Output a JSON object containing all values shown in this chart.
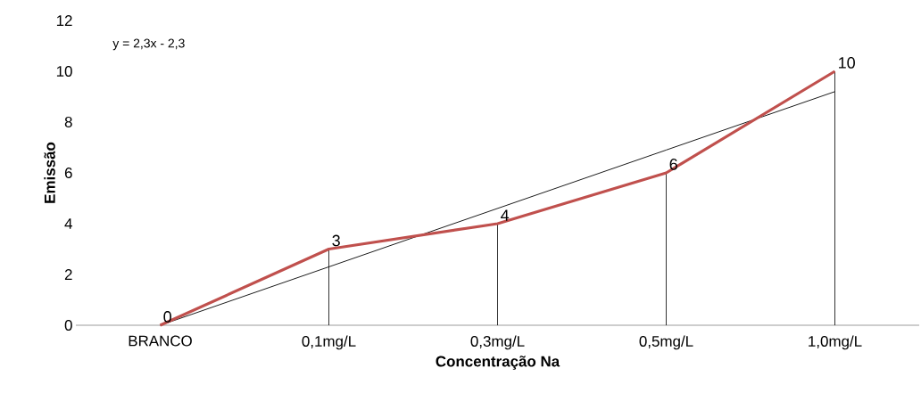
{
  "chart_data": {
    "type": "line",
    "xlabel": "Concentração Na",
    "ylabel": "Emissão",
    "categories": [
      "BRANCO",
      "0,1mg/L",
      "0,3mg/L",
      "0,5mg/L",
      "1,0mg/L"
    ],
    "series": [
      {
        "color": "#c0504d",
        "values": [
          0,
          3,
          4,
          6,
          10
        ],
        "value_labels": [
          "0",
          "3",
          "4",
          "6",
          "10"
        ]
      },
      {
        "type": "line",
        "color": "#000000",
        "values": [
          0,
          2.3,
          4.6,
          6.9,
          9.2
        ]
      }
    ],
    "ylim": [
      0,
      12
    ],
    "yticks": [
      0,
      2,
      4,
      6,
      8,
      10,
      12
    ],
    "annotations": [
      "y = 2,3x - 2,3"
    ],
    "marker": "none",
    "line_style": "solid"
  }
}
